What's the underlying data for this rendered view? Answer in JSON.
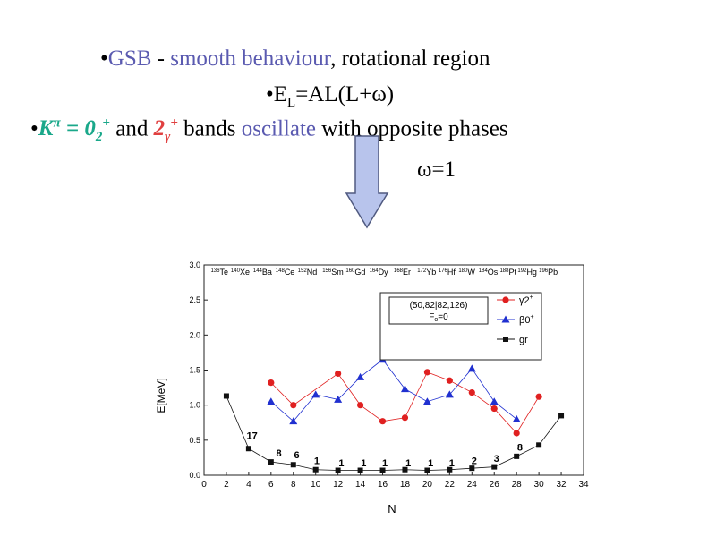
{
  "slide": {
    "line1": {
      "bullet": "•",
      "a": "GSB",
      "b": " - ",
      "c": "smooth behaviour",
      "d": ", rotational region"
    },
    "line2": {
      "text": "•E",
      "sub": "L",
      "rest": "=AL(L+ω)"
    },
    "line3": {
      "bullet": "•",
      "k": "K",
      "kpi": "π",
      "eq": " = 0",
      "eqsub": "2",
      "eqsup": "+",
      "and": "  and ",
      "two": "2",
      "gsub": "γ",
      "gsup": "+",
      "bands": " bands ",
      "osc": "oscillate",
      "rest": " with opposite phases"
    },
    "line4": {
      "text": "ω=1"
    }
  },
  "colors": {
    "arrow_fill": "#b8c4ec",
    "arrow_stroke": "#505a80",
    "gamma": "#e02020",
    "beta": "#2030d0",
    "gr": "#111111"
  },
  "chart_data": {
    "type": "line",
    "xlabel": "N",
    "ylabel": "E[MeV]",
    "xlim": [
      0,
      34
    ],
    "ylim": [
      0.0,
      3.0
    ],
    "xticks": [
      "0",
      "2",
      "4",
      "6",
      "8",
      "10",
      "12",
      "14",
      "16",
      "18",
      "20",
      "22",
      "24",
      "26",
      "28",
      "30",
      "32",
      "34"
    ],
    "yticks": [
      "0.0",
      "0.5",
      "1.0",
      "1.5",
      "2.0",
      "2.5",
      "3.0"
    ],
    "nuclei": [
      {
        "mass": "136",
        "el": "Te",
        "x": 0.6
      },
      {
        "mass": "140",
        "el": "Xe",
        "x": 2.4
      },
      {
        "mass": "144",
        "el": "Ba",
        "x": 4.4
      },
      {
        "mass": "148",
        "el": "Ce",
        "x": 6.4
      },
      {
        "mass": "152",
        "el": "Nd",
        "x": 8.4
      },
      {
        "mass": "156",
        "el": "Sm",
        "x": 10.6
      },
      {
        "mass": "160",
        "el": "Gd",
        "x": 12.7
      },
      {
        "mass": "164",
        "el": "Dy",
        "x": 14.8
      },
      {
        "mass": "168",
        "el": "Er",
        "x": 17.0
      },
      {
        "mass": "172",
        "el": "Yb",
        "x": 19.1
      },
      {
        "mass": "176",
        "el": "Hf",
        "x": 21.0
      },
      {
        "mass": "180",
        "el": "W",
        "x": 22.8
      },
      {
        "mass": "184",
        "el": "Os",
        "x": 24.6
      },
      {
        "mass": "188",
        "el": "Pt",
        "x": 26.5
      },
      {
        "mass": "192",
        "el": "Hg",
        "x": 28.1
      },
      {
        "mass": "196",
        "el": "Pb",
        "x": 30.0
      }
    ],
    "legend_title1": "(50,82|82,126)",
    "legend_title2": "F",
    "legend_title2_sub": "o",
    "legend_title2_rest": "=0",
    "series": [
      {
        "name": "γ2",
        "name_sup": "+",
        "marker": "circle",
        "x": [
          6,
          8,
          12,
          14,
          16,
          18,
          20,
          22,
          24,
          26,
          28,
          30
        ],
        "y": [
          1.32,
          1.0,
          1.45,
          1.0,
          0.77,
          0.82,
          1.47,
          1.35,
          1.18,
          0.95,
          0.6,
          1.12
        ]
      },
      {
        "name": "β0",
        "name_sup": "+",
        "marker": "triangle",
        "x": [
          6,
          8,
          10,
          12,
          14,
          16,
          18,
          20,
          22,
          24,
          26,
          28
        ],
        "y": [
          1.05,
          0.77,
          1.15,
          1.08,
          1.4,
          1.65,
          1.23,
          1.05,
          1.15,
          1.52,
          1.05,
          0.8
        ]
      },
      {
        "name": "gr",
        "marker": "square",
        "x": [
          2,
          4,
          6,
          8,
          10,
          12,
          14,
          16,
          18,
          20,
          22,
          24,
          26,
          28,
          30,
          32
        ],
        "y": [
          1.13,
          0.38,
          0.19,
          0.15,
          0.08,
          0.07,
          0.07,
          0.07,
          0.08,
          0.07,
          0.08,
          0.1,
          0.12,
          0.27,
          0.43,
          0.85
        ]
      }
    ],
    "annotations": [
      {
        "text": "17",
        "x": 4.3,
        "y": 0.52
      },
      {
        "text": "8",
        "x": 6.7,
        "y": 0.27
      },
      {
        "text": "6",
        "x": 8.3,
        "y": 0.24
      },
      {
        "text": "1",
        "x": 10.1,
        "y": 0.16
      },
      {
        "text": "1",
        "x": 12.3,
        "y": 0.13
      },
      {
        "text": "1",
        "x": 14.3,
        "y": 0.13
      },
      {
        "text": "1",
        "x": 16.2,
        "y": 0.13
      },
      {
        "text": "1",
        "x": 18.3,
        "y": 0.13
      },
      {
        "text": "1",
        "x": 20.3,
        "y": 0.13
      },
      {
        "text": "1",
        "x": 22.2,
        "y": 0.13
      },
      {
        "text": "2",
        "x": 24.2,
        "y": 0.16
      },
      {
        "text": "3",
        "x": 26.2,
        "y": 0.19
      },
      {
        "text": "8",
        "x": 28.3,
        "y": 0.35
      }
    ]
  }
}
